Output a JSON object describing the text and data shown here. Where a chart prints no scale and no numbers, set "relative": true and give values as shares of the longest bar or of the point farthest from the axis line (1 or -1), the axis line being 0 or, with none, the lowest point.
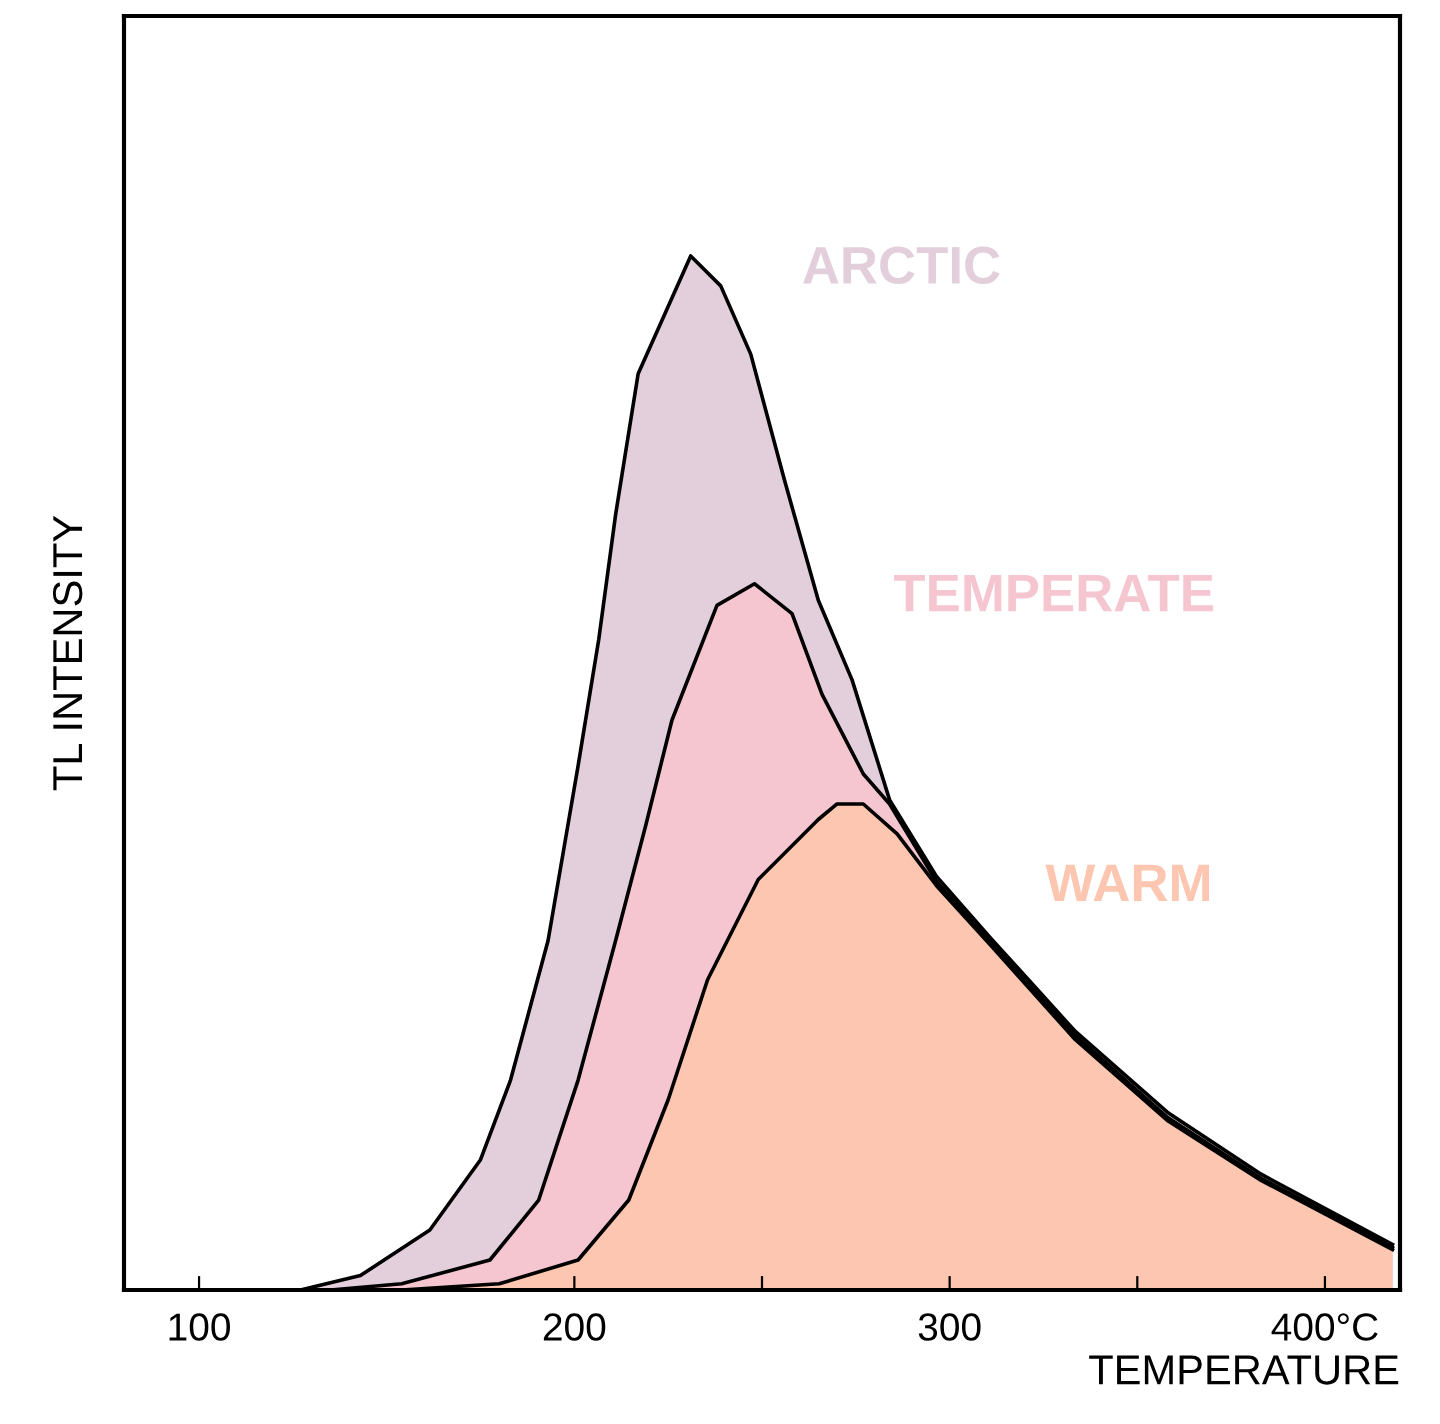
{
  "chart_data": {
    "type": "area",
    "relative": true,
    "xlabel": "TEMPERATURE",
    "ylabel": "TL INTENSITY",
    "xlim": [
      80,
      420
    ],
    "xticks": [
      100,
      200,
      {
        "value": 250,
        "label": null
      },
      300,
      {
        "value": 350,
        "label": null
      },
      {
        "value": 400,
        "label": "400°C"
      }
    ],
    "legend": false,
    "grid": false,
    "series": [
      {
        "name": "ARCTIC",
        "color": "#e3cfdc",
        "x": [
          127,
          143,
          161.5,
          175,
          183,
          193,
          201,
          206.5,
          211,
          217,
          231,
          239,
          247,
          256,
          265,
          274,
          284,
          296.5,
          311,
          333.5,
          358,
          383,
          418
        ],
        "values": [
          0,
          0.014,
          0.058,
          0.126,
          0.203,
          0.338,
          0.507,
          0.629,
          0.75,
          0.886,
          1,
          0.971,
          0.905,
          0.783,
          0.667,
          0.59,
          0.474,
          0.4,
          0.34,
          0.25,
          0.172,
          0.112,
          0.044
        ]
      },
      {
        "name": "TEMPERATE",
        "color": "#f5c6d0",
        "x": [
          135,
          154,
          177.5,
          190.5,
          201,
          211,
          219,
          226,
          238,
          248,
          258,
          266,
          277,
          284,
          296.5,
          311,
          333.5,
          358,
          383,
          418
        ],
        "values": [
          0,
          0.006,
          0.029,
          0.087,
          0.203,
          0.338,
          0.449,
          0.551,
          0.662,
          0.683,
          0.654,
          0.576,
          0.499,
          0.47,
          0.395,
          0.336,
          0.246,
          0.167,
          0.108,
          0.041
        ]
      },
      {
        "name": "WARM",
        "color": "#fcc6b0",
        "x": [
          154,
          180,
          201,
          214.5,
          225,
          235.5,
          249,
          265,
          270,
          277,
          286,
          296.5,
          311,
          333.5,
          358,
          383,
          418
        ],
        "values": [
          0,
          0.006,
          0.029,
          0.087,
          0.184,
          0.3,
          0.397,
          0.455,
          0.47,
          0.47,
          0.441,
          0.391,
          0.333,
          0.242,
          0.164,
          0.106,
          0.039
        ]
      }
    ]
  }
}
